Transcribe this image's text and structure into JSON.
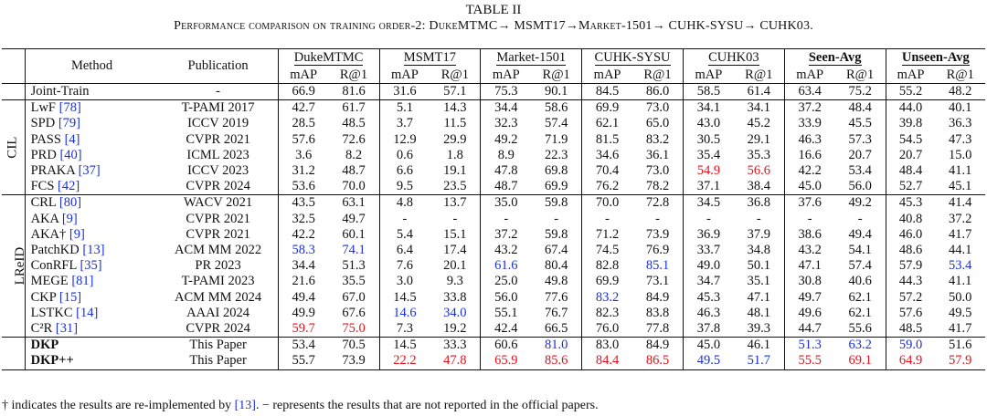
{
  "caption": {
    "label": "TABLE II",
    "title": "Performance comparison on training order-2: DukeMTMC→ MSMT17→Market-1501→ CUHK-SYSU→ CUHK03."
  },
  "headers": {
    "method": "Method",
    "publication": "Publication",
    "groups": [
      "DukeMTMC",
      "MSMT17",
      "Market-1501",
      "CUHK-SYSU",
      "CUHK03",
      "Seen-Avg",
      "Unseen-Avg"
    ],
    "metrics": [
      "mAP",
      "R@1"
    ]
  },
  "joint_train": {
    "method": "Joint-Train",
    "publication": "-",
    "values": [
      "66.9",
      "81.6",
      "31.6",
      "57.1",
      "75.3",
      "90.1",
      "84.5",
      "86.0",
      "58.5",
      "61.4",
      "63.4",
      "75.2",
      "55.2",
      "48.2"
    ]
  },
  "groups": [
    {
      "label": "CIL",
      "rows": [
        {
          "method": "LwF",
          "cite": "[78]",
          "publication": "T-PAMI 2017",
          "values": [
            "42.7",
            "61.7",
            "5.1",
            "14.3",
            "34.4",
            "58.6",
            "69.9",
            "73.0",
            "34.1",
            "34.1",
            "37.2",
            "48.4",
            "44.0",
            "40.1"
          ]
        },
        {
          "method": "SPD",
          "cite": "[79]",
          "publication": "ICCV 2019",
          "values": [
            "28.5",
            "48.5",
            "3.7",
            "11.5",
            "32.3",
            "57.4",
            "62.1",
            "65.0",
            "43.0",
            "45.2",
            "33.9",
            "45.5",
            "39.8",
            "36.3"
          ]
        },
        {
          "method": "PASS",
          "cite": "[4]",
          "publication": "CVPR 2021",
          "values": [
            "57.6",
            "72.6",
            "12.9",
            "29.9",
            "49.2",
            "71.9",
            "81.5",
            "83.2",
            "30.5",
            "29.1",
            "46.3",
            "57.3",
            "54.5",
            "47.3"
          ]
        },
        {
          "method": "PRD",
          "cite": "[40]",
          "publication": "ICML 2023",
          "values": [
            "3.6",
            "8.2",
            "0.6",
            "1.8",
            "8.9",
            "22.3",
            "34.6",
            "36.1",
            "35.4",
            "35.3",
            "16.6",
            "20.7",
            "20.7",
            "15.0"
          ]
        },
        {
          "method": "PRAKA",
          "cite": "[37]",
          "publication": "ICCV 2023",
          "values": [
            "31.2",
            "48.7",
            "6.6",
            "19.1",
            "47.8",
            "69.8",
            "70.4",
            "73.0",
            "54.9",
            "56.6",
            "42.2",
            "53.4",
            "48.4",
            "41.1"
          ],
          "highlights": {
            "8": "red",
            "9": "red"
          }
        },
        {
          "method": "FCS",
          "cite": "[42]",
          "publication": "CVPR 2024",
          "values": [
            "53.6",
            "70.0",
            "9.5",
            "23.5",
            "48.7",
            "69.9",
            "76.2",
            "78.2",
            "37.1",
            "38.4",
            "45.0",
            "56.0",
            "52.7",
            "45.1"
          ]
        }
      ]
    },
    {
      "label": "LReID",
      "rows": [
        {
          "method": "CRL",
          "cite": "[80]",
          "publication": "WACV 2021",
          "values": [
            "43.5",
            "63.1",
            "4.8",
            "13.7",
            "35.0",
            "59.8",
            "70.0",
            "72.8",
            "34.5",
            "36.8",
            "37.6",
            "49.2",
            "45.3",
            "41.4"
          ]
        },
        {
          "method": "AKA",
          "cite": "[9]",
          "publication": "CVPR 2021",
          "values": [
            "32.5",
            "49.7",
            "-",
            "-",
            "-",
            "-",
            "-",
            "-",
            "-",
            "-",
            "-",
            "-",
            "40.8",
            "37.2"
          ]
        },
        {
          "method": "AKA†",
          "cite": "[9]",
          "publication": "CVPR 2021",
          "values": [
            "42.2",
            "60.1",
            "5.4",
            "15.1",
            "37.2",
            "59.8",
            "71.2",
            "73.9",
            "36.9",
            "37.9",
            "38.6",
            "49.4",
            "46.0",
            "41.7"
          ]
        },
        {
          "method": "PatchKD",
          "cite": "[13]",
          "publication": "ACM MM 2022",
          "values": [
            "58.3",
            "74.1",
            "6.4",
            "17.4",
            "43.2",
            "67.4",
            "74.5",
            "76.9",
            "33.7",
            "34.8",
            "43.2",
            "54.1",
            "48.6",
            "44.1"
          ],
          "highlights": {
            "0": "blue",
            "1": "blue"
          }
        },
        {
          "method": "ConRFL",
          "cite": "[35]",
          "publication": "PR 2023",
          "values": [
            "34.4",
            "51.3",
            "7.6",
            "20.1",
            "61.6",
            "80.4",
            "82.8",
            "85.1",
            "49.0",
            "50.1",
            "47.1",
            "57.4",
            "57.9",
            "53.4"
          ],
          "highlights": {
            "4": "blue",
            "7": "blue",
            "13": "blue"
          }
        },
        {
          "method": "MEGE",
          "cite": "[81]",
          "publication": "T-PAMI 2023",
          "values": [
            "21.6",
            "35.5",
            "3.0",
            "9.3",
            "25.0",
            "49.8",
            "69.9",
            "73.1",
            "34.7",
            "35.1",
            "30.8",
            "40.6",
            "44.3",
            "41.1"
          ]
        },
        {
          "method": "CKP",
          "cite": "[15]",
          "publication": "ACM MM 2024",
          "values": [
            "49.4",
            "67.0",
            "14.5",
            "33.8",
            "56.0",
            "77.6",
            "83.2",
            "84.9",
            "45.3",
            "47.1",
            "49.7",
            "62.1",
            "57.2",
            "50.0"
          ],
          "highlights": {
            "6": "blue"
          }
        },
        {
          "method": "LSTKC",
          "cite": "[14]",
          "publication": "AAAI 2024",
          "values": [
            "49.9",
            "67.6",
            "14.6",
            "34.0",
            "55.1",
            "76.7",
            "82.3",
            "83.8",
            "46.3",
            "48.1",
            "49.6",
            "62.1",
            "57.6",
            "49.5"
          ],
          "highlights": {
            "2": "blue",
            "3": "blue"
          }
        },
        {
          "method": "C²R",
          "cite": "[31]",
          "publication": "CVPR 2024",
          "values": [
            "59.7",
            "75.0",
            "7.3",
            "19.2",
            "42.4",
            "66.5",
            "76.0",
            "77.8",
            "37.8",
            "39.3",
            "44.7",
            "55.6",
            "48.5",
            "41.7"
          ],
          "highlights": {
            "0": "red",
            "1": "red"
          }
        }
      ]
    }
  ],
  "ours": [
    {
      "method": "DKP",
      "publication": "This Paper",
      "values": [
        "53.4",
        "70.5",
        "14.5",
        "33.3",
        "60.6",
        "81.0",
        "83.0",
        "84.9",
        "45.0",
        "46.1",
        "51.3",
        "63.2",
        "59.0",
        "51.6"
      ],
      "highlights": {
        "5": "blue",
        "10": "blue",
        "11": "blue",
        "12": "blue"
      }
    },
    {
      "method": "DKP++",
      "publication": "This Paper",
      "values": [
        "55.7",
        "73.9",
        "22.2",
        "47.8",
        "65.9",
        "85.6",
        "84.4",
        "86.5",
        "49.5",
        "51.7",
        "55.5",
        "69.1",
        "64.9",
        "57.9"
      ],
      "highlights": {
        "2": "red",
        "3": "red",
        "4": "red",
        "5": "red",
        "6": "red",
        "7": "red",
        "8": "blue",
        "9": "blue",
        "10": "red",
        "11": "red",
        "12": "red",
        "13": "red"
      }
    }
  ],
  "footnote": {
    "dagger": "†",
    "text1": " indicates the results are re-implemented by ",
    "cite": "[13]",
    "text2": ". − represents the results that are not reported in the official papers."
  },
  "colors": {
    "best": "#e8101b",
    "second": "#1a2fe0",
    "cite": "#1a2fe0"
  }
}
